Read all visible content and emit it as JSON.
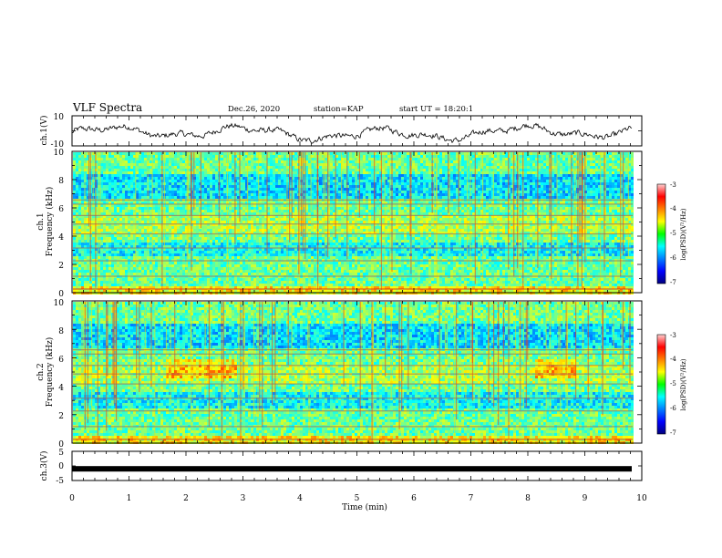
{
  "header": {
    "title": "VLF Spectra",
    "date": "Dec.26, 2020",
    "station": "station=KAP",
    "start": "start UT = 18:20:1"
  },
  "chart_data": [
    {
      "type": "line",
      "panel": "ch1_waveform",
      "ylabel": "ch.1(V)",
      "ylim": [
        -10,
        10
      ],
      "ytick_labels": [
        "10",
        "-10"
      ],
      "x_range_min": [
        0,
        9.8
      ],
      "description_values_y_range": [
        -7,
        4
      ],
      "color": "#000000"
    },
    {
      "type": "heatmap",
      "panel": "ch1_spectrogram",
      "ylabel_line1": "ch.1",
      "ylabel_line2": "Frequency (kHz)",
      "ylim": [
        0,
        10
      ],
      "ytick_labels": [
        "0",
        "2",
        "4",
        "6",
        "8",
        "10"
      ],
      "colorbar": {
        "label": "log(PSD)(V²/Hz)",
        "range": [
          -7,
          -3
        ],
        "tick_labels": [
          "-3",
          "-4",
          "-5",
          "-6",
          "-7"
        ]
      }
    },
    {
      "type": "heatmap",
      "panel": "ch2_spectrogram",
      "ylabel_line1": "ch.2",
      "ylabel_line2": "Frequency (kHz)",
      "ylim": [
        0,
        10
      ],
      "ytick_labels": [
        "0",
        "2",
        "4",
        "6",
        "8",
        "10"
      ],
      "colorbar": {
        "label": "log(PSD)(V²/Hz)",
        "range": [
          -7,
          -3
        ],
        "tick_labels": [
          "-3",
          "-4",
          "-5",
          "-6",
          "-7"
        ]
      }
    },
    {
      "type": "line",
      "panel": "ch3_waveform",
      "ylabel": "ch.3(V)",
      "ylim": [
        -5,
        5
      ],
      "ytick_labels": [
        "5",
        "0",
        "-5"
      ],
      "y_value": -1,
      "color": "#000000"
    }
  ],
  "x_axis": {
    "label": "Time (min)",
    "xlim": [
      0,
      10
    ],
    "tick_labels": [
      "0",
      "1",
      "2",
      "3",
      "4",
      "5",
      "6",
      "7",
      "8",
      "9",
      "10"
    ]
  }
}
